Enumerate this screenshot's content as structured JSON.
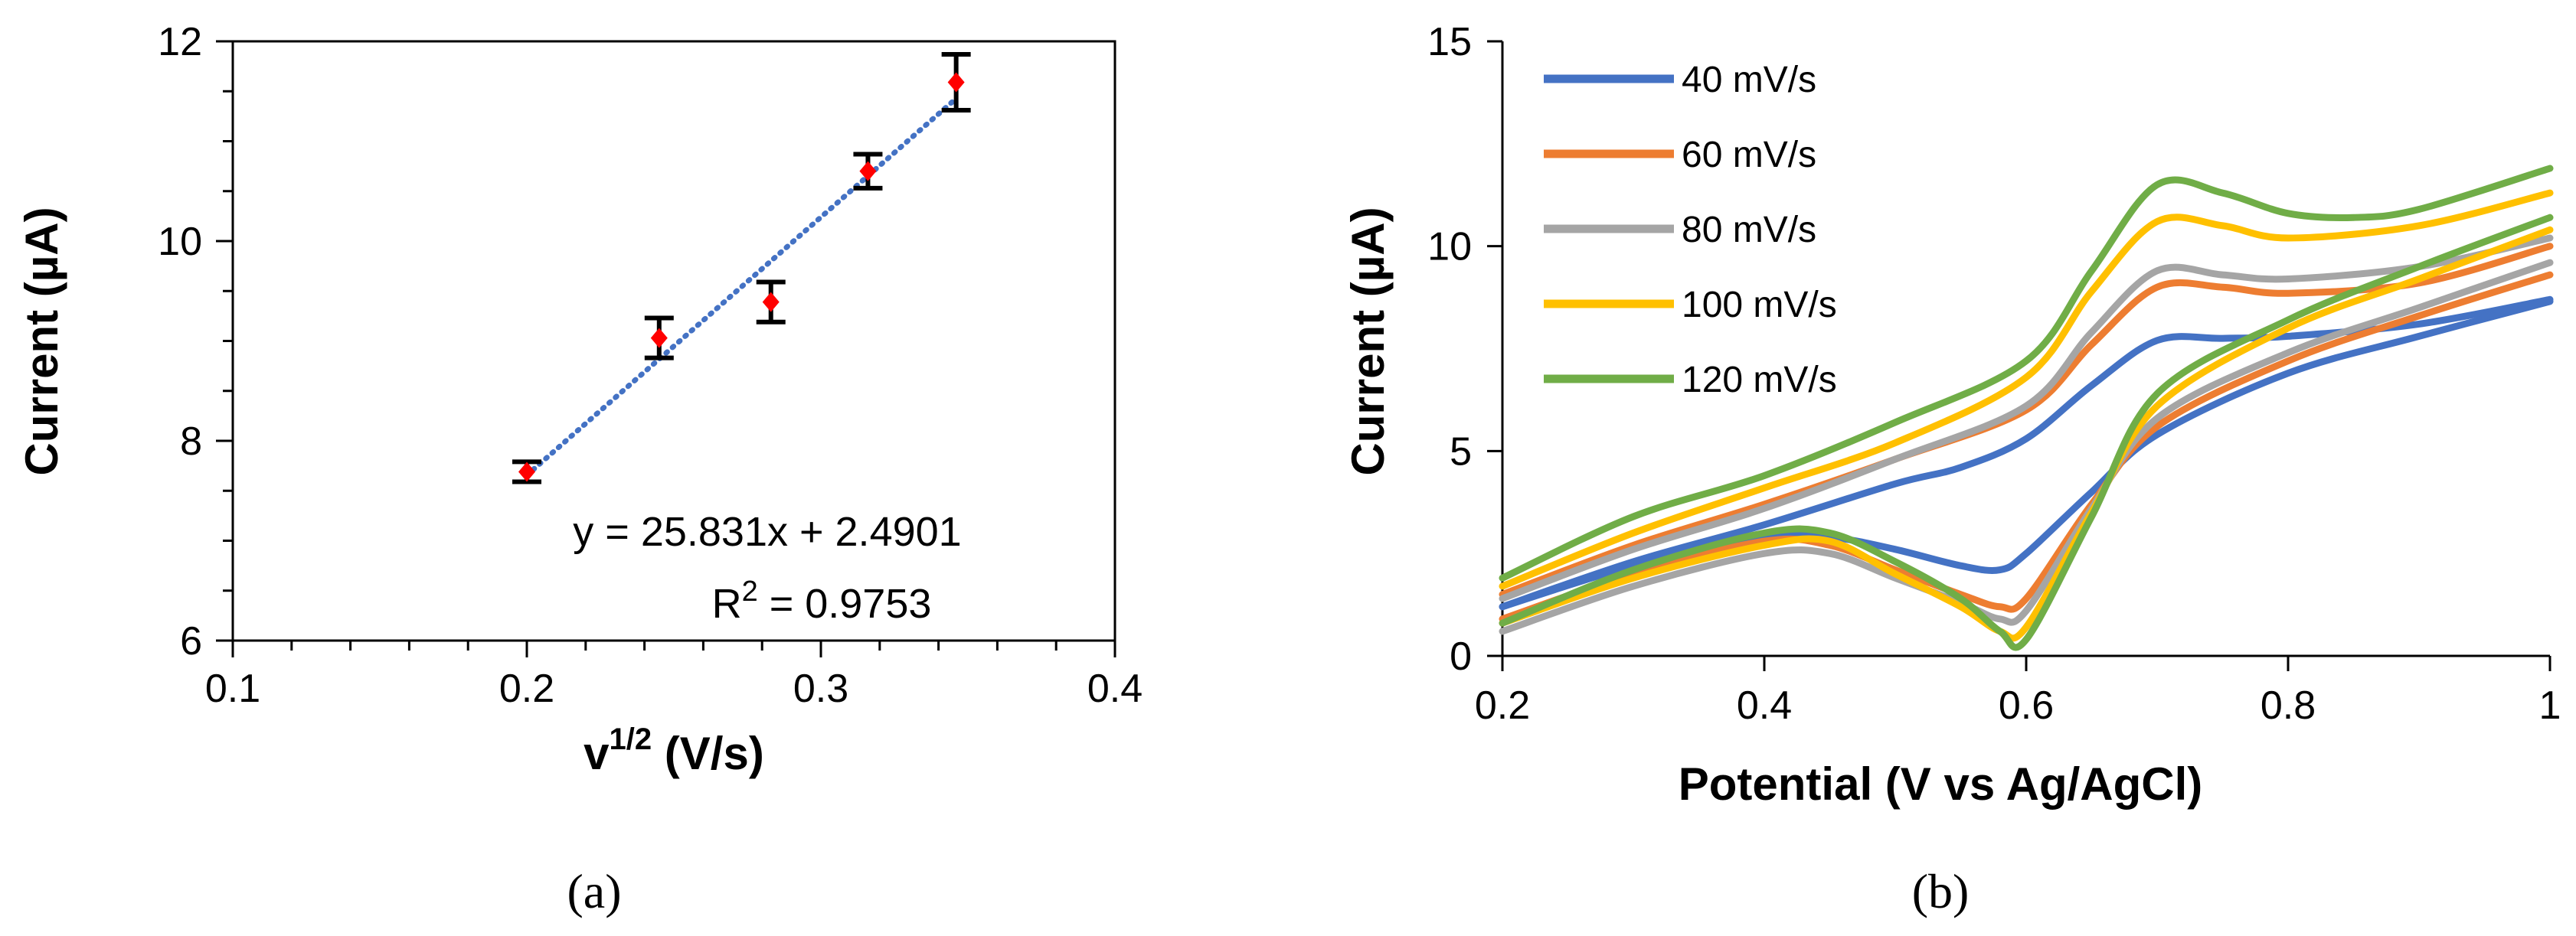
{
  "chart_data": [
    {
      "type": "scatter",
      "panel_label": "(a)",
      "xlabel_main": "v",
      "xlabel_sup": "1/2",
      "xlabel_rest": " (V/s)",
      "ylabel": "Current (µA)",
      "xlim": [
        0.1,
        0.4
      ],
      "ylim": [
        6,
        12
      ],
      "x_ticks": [
        0.1,
        0.2,
        0.3,
        0.4
      ],
      "x_tick_labels": [
        "0.1",
        "0.2",
        "0.3",
        "0.4"
      ],
      "y_ticks": [
        6,
        8,
        10,
        12
      ],
      "y_tick_labels": [
        "6",
        "8",
        "10",
        "12"
      ],
      "grid": false,
      "marker_color": "#ff0000",
      "trendline_color": "#4472c4",
      "points": [
        {
          "x": 0.2,
          "y": 7.69,
          "err": 0.1
        },
        {
          "x": 0.245,
          "y": 9.03,
          "err": 0.2
        },
        {
          "x": 0.283,
          "y": 9.39,
          "err": 0.2
        },
        {
          "x": 0.316,
          "y": 10.7,
          "err": 0.17
        },
        {
          "x": 0.346,
          "y": 11.59,
          "err": 0.28
        }
      ],
      "trendline": {
        "slope": 25.831,
        "intercept": 2.4901,
        "x_range": [
          0.2,
          0.346
        ]
      },
      "equation_text": "y = 25.831x + 2.4901",
      "r2_prefix": "R",
      "r2_sup": "2",
      "r2_value": " = 0.9753"
    },
    {
      "type": "line",
      "panel_label": "(b)",
      "xlabel": "Potential (V vs Ag/AgCl)",
      "ylabel": "Current (µA)",
      "xlim": [
        0.2,
        1.0
      ],
      "ylim": [
        0,
        15
      ],
      "x_ticks": [
        0.2,
        0.4,
        0.6,
        0.8,
        1.0
      ],
      "x_tick_labels": [
        "0.2",
        "0.4",
        "0.6",
        "0.8",
        "1"
      ],
      "y_ticks": [
        0,
        5,
        10,
        15
      ],
      "y_tick_labels": [
        "0",
        "5",
        "10",
        "15"
      ],
      "grid": false,
      "legend_position": "top-left",
      "series": [
        {
          "name": "40 mV/s",
          "color": "#4472c4",
          "forward": [
            [
              0.2,
              1.2
            ],
            [
              0.3,
              2.3
            ],
            [
              0.4,
              3.2
            ],
            [
              0.5,
              4.2
            ],
            [
              0.55,
              4.6
            ],
            [
              0.6,
              5.3
            ],
            [
              0.65,
              6.6
            ],
            [
              0.7,
              7.7
            ],
            [
              0.75,
              7.75
            ],
            [
              0.8,
              7.8
            ],
            [
              0.9,
              8.1
            ],
            [
              1.0,
              8.7
            ]
          ],
          "reverse": [
            [
              1.0,
              8.65
            ],
            [
              0.9,
              7.8
            ],
            [
              0.8,
              6.9
            ],
            [
              0.7,
              5.4
            ],
            [
              0.65,
              4.0
            ],
            [
              0.6,
              2.5
            ],
            [
              0.58,
              2.1
            ],
            [
              0.55,
              2.2
            ],
            [
              0.5,
              2.6
            ],
            [
              0.45,
              2.9
            ],
            [
              0.4,
              2.9
            ],
            [
              0.3,
              2.2
            ],
            [
              0.2,
              1.2
            ]
          ]
        },
        {
          "name": "60 mV/s",
          "color": "#ed7d31",
          "forward": [
            [
              0.2,
              1.5
            ],
            [
              0.3,
              2.7
            ],
            [
              0.4,
              3.7
            ],
            [
              0.5,
              4.8
            ],
            [
              0.6,
              6.0
            ],
            [
              0.65,
              7.6
            ],
            [
              0.7,
              9.0
            ],
            [
              0.75,
              9.0
            ],
            [
              0.8,
              8.85
            ],
            [
              0.9,
              9.1
            ],
            [
              1.0,
              10.0
            ]
          ],
          "reverse": [
            [
              1.0,
              9.3
            ],
            [
              0.9,
              8.3
            ],
            [
              0.8,
              7.2
            ],
            [
              0.7,
              5.6
            ],
            [
              0.65,
              3.7
            ],
            [
              0.6,
              1.4
            ],
            [
              0.58,
              1.2
            ],
            [
              0.55,
              1.5
            ],
            [
              0.5,
              2.1
            ],
            [
              0.45,
              2.7
            ],
            [
              0.4,
              2.8
            ],
            [
              0.3,
              2.0
            ],
            [
              0.2,
              0.9
            ]
          ]
        },
        {
          "name": "80 mV/s",
          "color": "#a5a5a5",
          "forward": [
            [
              0.2,
              1.4
            ],
            [
              0.3,
              2.6
            ],
            [
              0.4,
              3.6
            ],
            [
              0.5,
              4.8
            ],
            [
              0.6,
              6.1
            ],
            [
              0.65,
              7.9
            ],
            [
              0.7,
              9.4
            ],
            [
              0.75,
              9.3
            ],
            [
              0.8,
              9.2
            ],
            [
              0.9,
              9.5
            ],
            [
              1.0,
              10.2
            ]
          ],
          "reverse": [
            [
              1.0,
              9.6
            ],
            [
              0.9,
              8.5
            ],
            [
              0.8,
              7.4
            ],
            [
              0.7,
              5.8
            ],
            [
              0.65,
              3.6
            ],
            [
              0.6,
              1.1
            ],
            [
              0.58,
              0.9
            ],
            [
              0.55,
              1.3
            ],
            [
              0.5,
              1.9
            ],
            [
              0.45,
              2.5
            ],
            [
              0.4,
              2.5
            ],
            [
              0.3,
              1.7
            ],
            [
              0.2,
              0.6
            ]
          ]
        },
        {
          "name": "100 mV/s",
          "color": "#ffc000",
          "forward": [
            [
              0.2,
              1.7
            ],
            [
              0.3,
              3.0
            ],
            [
              0.4,
              4.1
            ],
            [
              0.5,
              5.2
            ],
            [
              0.6,
              6.8
            ],
            [
              0.65,
              8.9
            ],
            [
              0.7,
              10.6
            ],
            [
              0.75,
              10.5
            ],
            [
              0.8,
              10.2
            ],
            [
              0.9,
              10.5
            ],
            [
              1.0,
              11.3
            ]
          ],
          "reverse": [
            [
              1.0,
              10.4
            ],
            [
              0.9,
              9.2
            ],
            [
              0.8,
              8.0
            ],
            [
              0.7,
              6.1
            ],
            [
              0.65,
              3.5
            ],
            [
              0.6,
              0.7
            ],
            [
              0.58,
              0.6
            ],
            [
              0.55,
              1.2
            ],
            [
              0.5,
              2.0
            ],
            [
              0.45,
              2.8
            ],
            [
              0.4,
              2.7
            ],
            [
              0.3,
              1.9
            ],
            [
              0.2,
              0.8
            ]
          ]
        },
        {
          "name": "120 mV/s",
          "color": "#70ad47",
          "forward": [
            [
              0.2,
              1.9
            ],
            [
              0.3,
              3.4
            ],
            [
              0.4,
              4.4
            ],
            [
              0.5,
              5.7
            ],
            [
              0.6,
              7.2
            ],
            [
              0.65,
              9.4
            ],
            [
              0.7,
              11.5
            ],
            [
              0.75,
              11.3
            ],
            [
              0.8,
              10.8
            ],
            [
              0.85,
              10.7
            ],
            [
              0.9,
              10.9
            ],
            [
              1.0,
              11.9
            ]
          ],
          "reverse": [
            [
              1.0,
              10.7
            ],
            [
              0.9,
              9.5
            ],
            [
              0.8,
              8.2
            ],
            [
              0.7,
              6.4
            ],
            [
              0.65,
              3.4
            ],
            [
              0.6,
              0.4
            ],
            [
              0.58,
              0.6
            ],
            [
              0.55,
              1.4
            ],
            [
              0.5,
              2.3
            ],
            [
              0.45,
              3.0
            ],
            [
              0.4,
              3.0
            ],
            [
              0.3,
              2.1
            ],
            [
              0.2,
              0.8
            ]
          ]
        }
      ]
    }
  ]
}
